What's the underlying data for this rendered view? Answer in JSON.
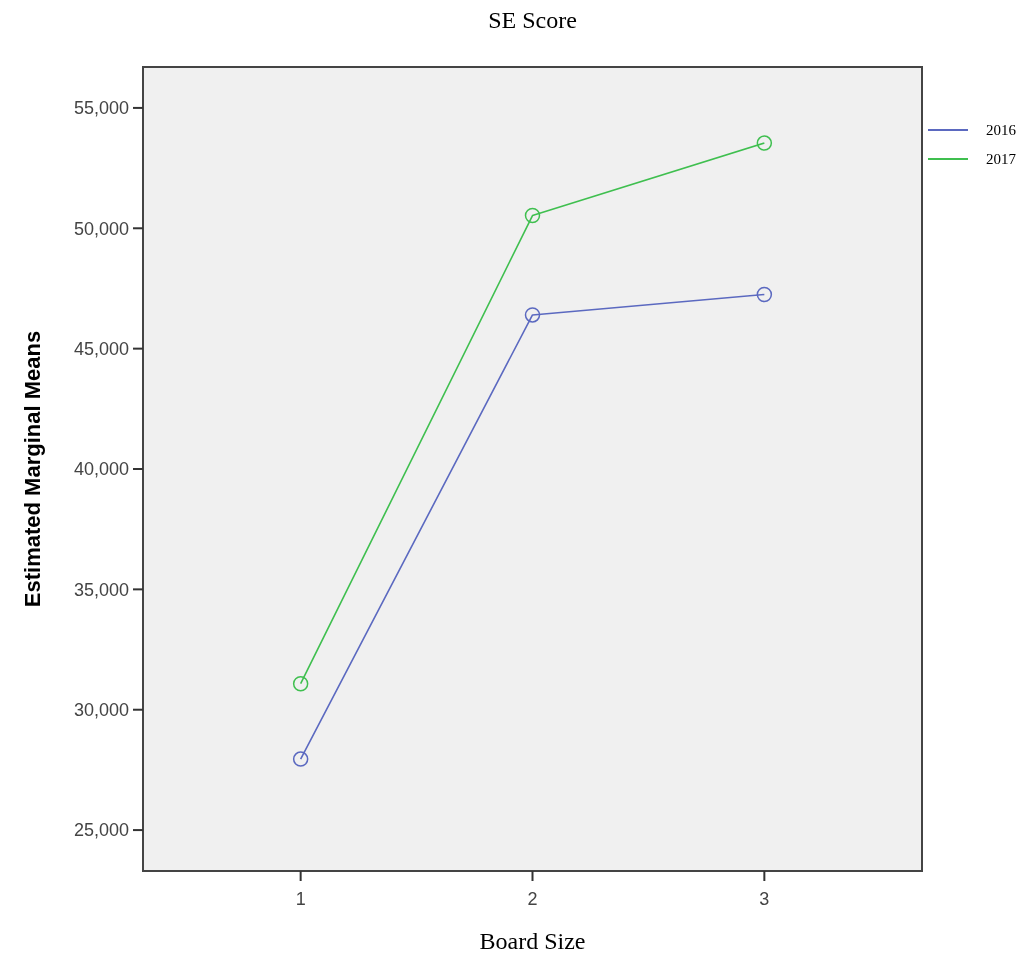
{
  "chart_data": {
    "type": "line",
    "title": "SE Score",
    "xlabel": "Board Size",
    "ylabel": "Estimated Marginal Means",
    "categories": [
      "1",
      "2",
      "3"
    ],
    "series": [
      {
        "name": "2016",
        "color": "#5b69c0",
        "values": [
          27950,
          46400,
          47250
        ]
      },
      {
        "name": "2017",
        "color": "#3fbf4f",
        "values": [
          31080,
          50530,
          53540
        ]
      }
    ],
    "ylim": [
      23300,
      56700
    ],
    "yticks": [
      {
        "value": 25000,
        "label": "25,000"
      },
      {
        "value": 30000,
        "label": "30,000"
      },
      {
        "value": 35000,
        "label": "35,000"
      },
      {
        "value": 40000,
        "label": "40,000"
      },
      {
        "value": 45000,
        "label": "45,000"
      },
      {
        "value": 50000,
        "label": "50,000"
      },
      {
        "value": 55000,
        "label": "55,000"
      }
    ],
    "grid": false,
    "legend": "top right",
    "marker": "circle",
    "line_style": "solid"
  }
}
